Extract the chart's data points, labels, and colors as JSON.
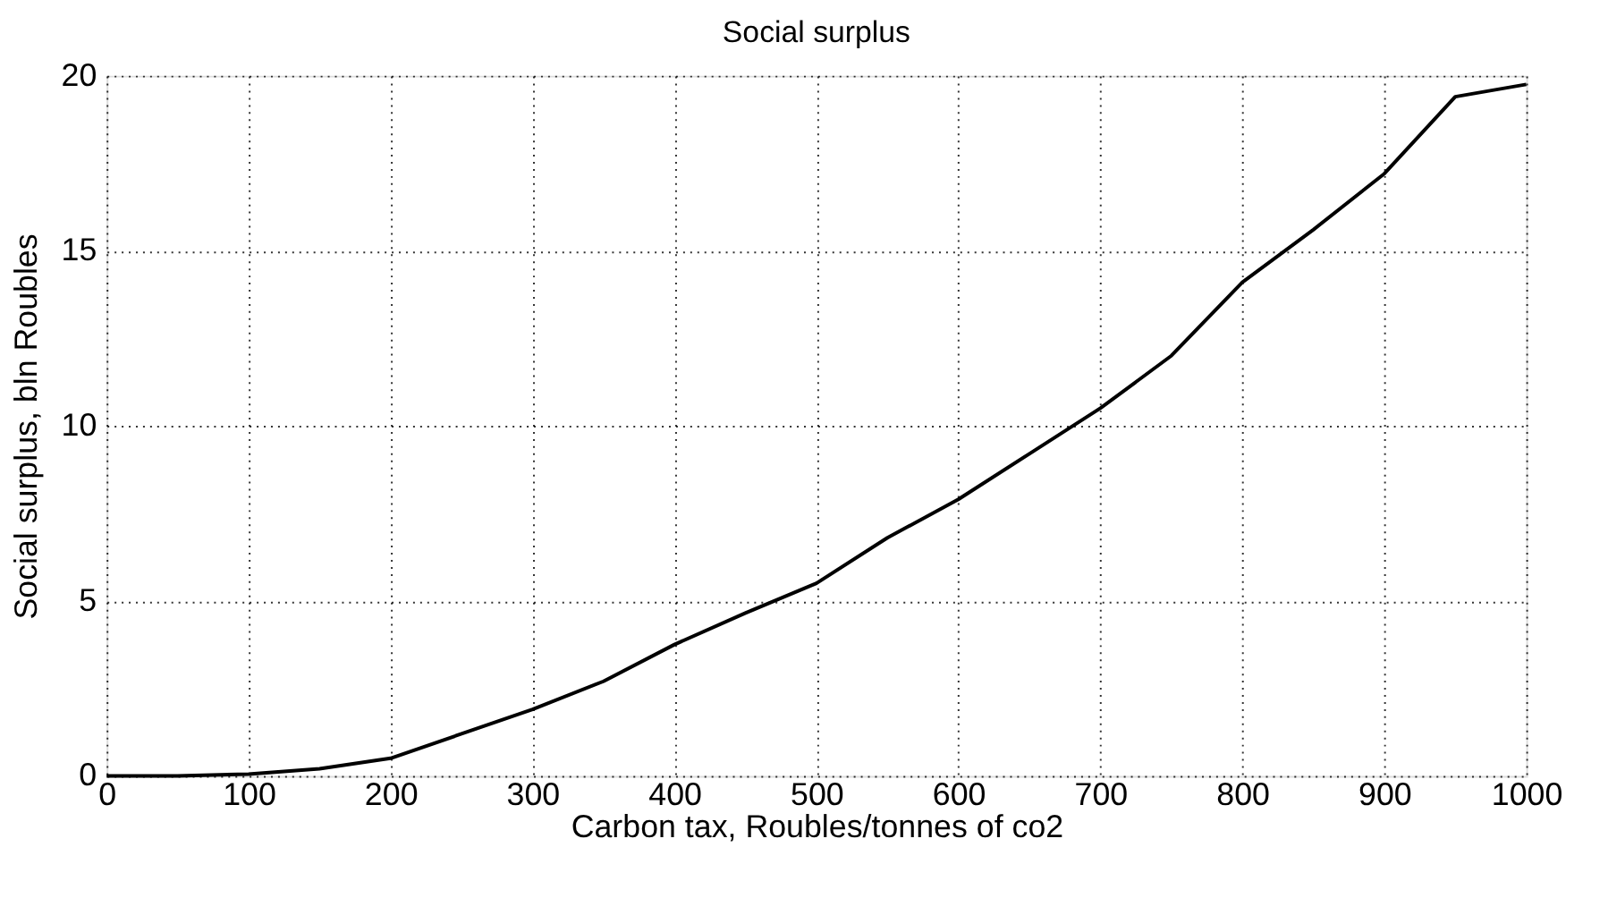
{
  "chart_data": {
    "type": "line",
    "title": "Social surplus",
    "xlabel": "Carbon tax, Roubles/tonnes of co2",
    "ylabel": "Social surplus, bln Roubles",
    "x": [
      0,
      50,
      100,
      150,
      200,
      250,
      300,
      350,
      400,
      450,
      500,
      550,
      600,
      650,
      700,
      750,
      800,
      850,
      900,
      950,
      1000
    ],
    "series": [
      {
        "color": "#000000",
        "values": [
          0,
          0,
          0.05,
          0.2,
          0.5,
          1.2,
          1.9,
          2.7,
          3.75,
          4.65,
          5.5,
          6.8,
          7.9,
          9.2,
          10.5,
          12.0,
          14.1,
          15.6,
          17.2,
          19.4,
          19.75
        ]
      }
    ],
    "xlim": [
      0,
      1000
    ],
    "ylim": [
      0,
      20
    ],
    "xticks": [
      0,
      100,
      200,
      300,
      400,
      500,
      600,
      700,
      800,
      900,
      1000
    ],
    "yticks": [
      0,
      5,
      10,
      15,
      20
    ],
    "grid": true,
    "line_style": "solid",
    "marker": "none",
    "legend": false
  }
}
